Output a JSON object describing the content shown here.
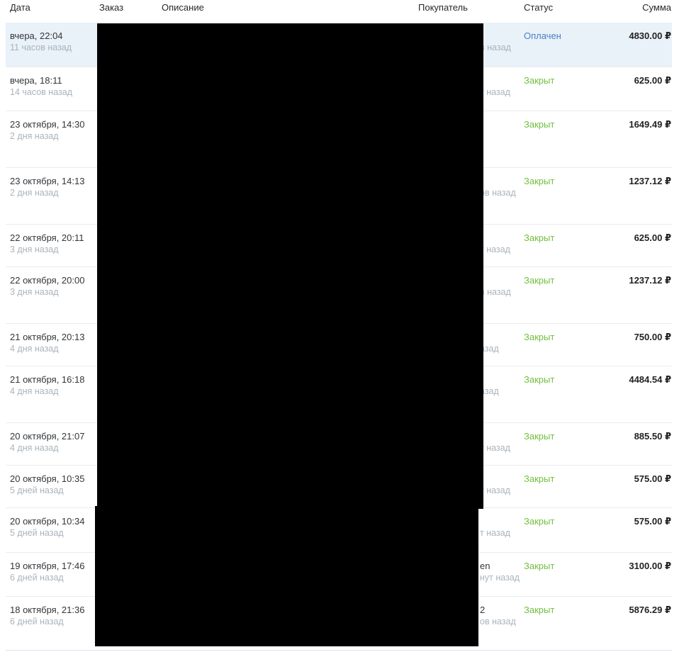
{
  "table": {
    "columns": [
      {
        "label": "Дата"
      },
      {
        "label": "Заказ"
      },
      {
        "label": "Описание"
      },
      {
        "label": "Покупатель"
      },
      {
        "label": "Статус"
      },
      {
        "label": "Сумма"
      }
    ],
    "status_colors": {
      "paid": "#4a80c4",
      "closed": "#70bf3b"
    },
    "selected_row_bg": "#e9f1f9",
    "rows": [
      {
        "row_class": "row selected",
        "date": "вчера, 22:04",
        "date_rel": "11 часов назад",
        "buyer_name_partial": "",
        "buyer_rel_partial": "в назад",
        "status": "Оплачен",
        "status_class": "status-text paid",
        "amount": "4830.00 ₽"
      },
      {
        "row_class": "row",
        "date": "вчера, 18:11",
        "date_rel": "14 часов назад",
        "buyer_name_partial": "",
        "buyer_rel_partial": "т назад",
        "status": "Закрыт",
        "status_class": "status-text closed",
        "amount": "625.00 ₽"
      },
      {
        "row_class": "row",
        "date": "23 октября, 14:30",
        "date_rel": "2 дня назад",
        "buyer_name_partial": "",
        "buyer_rel_partial": "",
        "status": "Закрыт",
        "status_class": "status-text closed",
        "amount": "1649.49 ₽"
      },
      {
        "row_class": "row",
        "date": "23 октября, 14:13",
        "date_rel": "2 дня назад",
        "buyer_name_partial": "",
        "buyer_rel_partial": "ов назад",
        "status": "Закрыт",
        "status_class": "status-text closed",
        "amount": "1237.12 ₽"
      },
      {
        "row_class": "row",
        "date": "22 октября, 20:11",
        "date_rel": "3 дня назад",
        "buyer_name_partial": "",
        "buyer_rel_partial": "т назад",
        "status": "Закрыт",
        "status_class": "status-text closed",
        "amount": "625.00 ₽"
      },
      {
        "row_class": "row",
        "date": "22 октября, 20:00",
        "date_rel": "3 дня назад",
        "buyer_name_partial": "",
        "buyer_rel_partial": "в назад",
        "status": "Закрыт",
        "status_class": "status-text closed",
        "amount": "1237.12 ₽"
      },
      {
        "row_class": "row",
        "date": "21 октября, 20:13",
        "date_rel": "4 дня назад",
        "buyer_name_partial": "",
        "buyer_rel_partial": "азад",
        "status": "Закрыт",
        "status_class": "status-text closed",
        "amount": "750.00 ₽"
      },
      {
        "row_class": "row",
        "date": "21 октября, 16:18",
        "date_rel": "4 дня назад",
        "buyer_name_partial": "",
        "buyer_rel_partial": "азад",
        "status": "Закрыт",
        "status_class": "status-text closed",
        "amount": "4484.54 ₽"
      },
      {
        "row_class": "row",
        "date": "20 октября, 21:07",
        "date_rel": "4 дня назад",
        "buyer_name_partial": "",
        "buyer_rel_partial": "т назад",
        "status": "Закрыт",
        "status_class": "status-text closed",
        "amount": "885.50 ₽"
      },
      {
        "row_class": "row",
        "date": "20 октября, 10:35",
        "date_rel": "5 дней назад",
        "buyer_name_partial": "",
        "buyer_rel_partial": "т назад",
        "status": "Закрыт",
        "status_class": "status-text closed",
        "amount": "575.00 ₽"
      },
      {
        "row_class": "row",
        "date": "20 октября, 10:34",
        "date_rel": "5 дней назад",
        "buyer_name_partial": "",
        "buyer_rel_partial": "т назад",
        "status": "Закрыт",
        "status_class": "status-text closed",
        "amount": "575.00 ₽"
      },
      {
        "row_class": "row",
        "date": "19 октября, 17:46",
        "date_rel": "6 дней назад",
        "buyer_name_partial": "en",
        "buyer_rel_partial": "нут назад",
        "status": "Закрыт",
        "status_class": "status-text closed",
        "amount": "3100.00 ₽"
      },
      {
        "row_class": "row",
        "date": "18 октября, 21:36",
        "date_rel": "6 дней назад",
        "buyer_name_partial": "2",
        "buyer_rel_partial": "ов назад",
        "status": "Закрыт",
        "status_class": "status-text closed",
        "amount": "5876.29 ₽"
      }
    ]
  }
}
